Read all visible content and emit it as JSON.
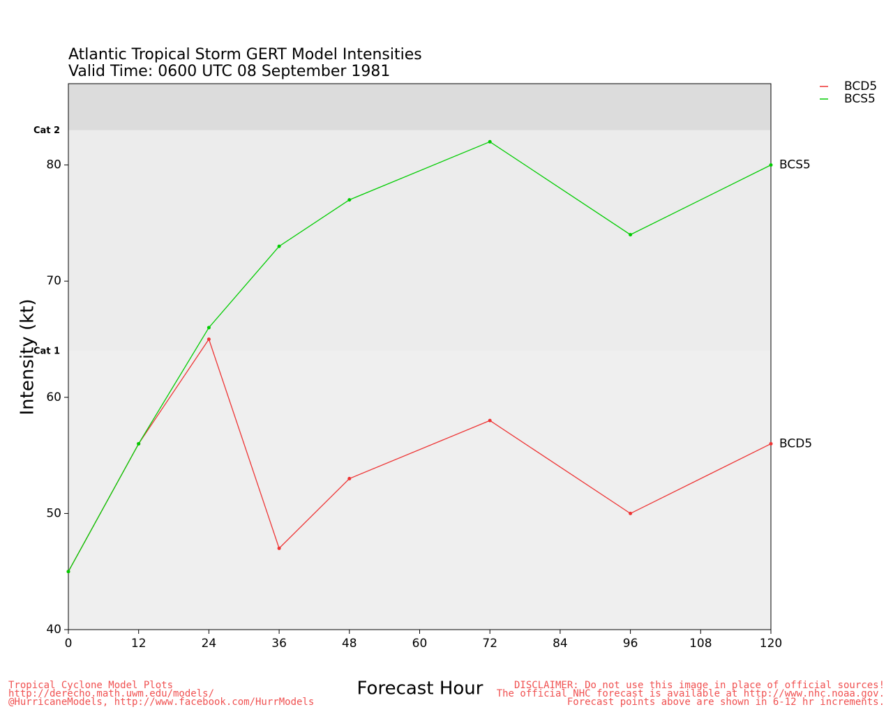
{
  "chart_data": {
    "type": "line",
    "title": "Atlantic Tropical Storm GERT Model Intensities",
    "subtitle": "Valid Time: 0600 UTC 08 September 1981",
    "x_label": "Forecast Hour",
    "y_label": "Intensity (kt)",
    "x": [
      0,
      12,
      24,
      36,
      48,
      72,
      96,
      120
    ],
    "series": [
      {
        "name": "BCD5",
        "color": "#ee3333",
        "values": [
          45,
          56,
          65,
          47,
          53,
          58,
          50,
          56
        ]
      },
      {
        "name": "BCS5",
        "color": "#00cc00",
        "values": [
          45,
          56,
          66,
          73,
          77,
          82,
          74,
          80
        ]
      }
    ],
    "xlim": [
      0,
      120
    ],
    "xticks": [
      0,
      12,
      24,
      36,
      48,
      60,
      72,
      84,
      96,
      108,
      120
    ],
    "ylim": [
      40,
      87
    ],
    "yticks": [
      40,
      50,
      60,
      70,
      80
    ],
    "thresholds": [
      {
        "label": "Cat 1",
        "value": 64
      },
      {
        "label": "Cat 2",
        "value": 83
      }
    ],
    "footer_left": [
      "Tropical Cyclone Model Plots",
      "http://derecho.math.uwm.edu/models/",
      "@HurricaneModels, http://www.facebook.com/HurrModels"
    ],
    "footer_right": [
      "DISCLAIMER: Do not use this image in place of official sources!",
      "The official NHC forecast is available at http://www.nhc.noaa.gov.",
      "Forecast points above are shown in 6-12 hr increments."
    ]
  }
}
